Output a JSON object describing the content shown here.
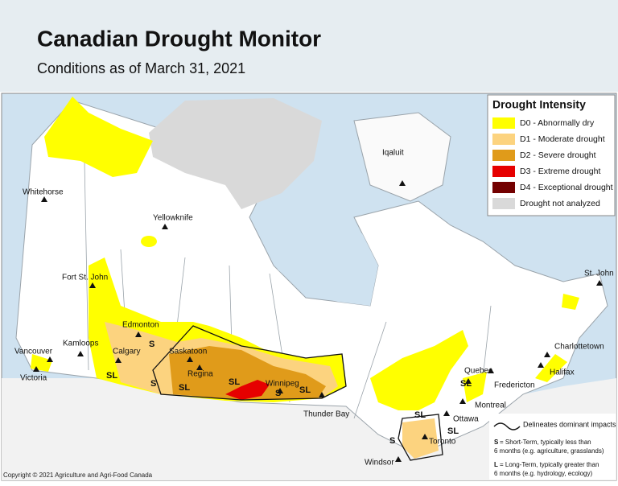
{
  "header": {
    "title": "Canadian Drought Monitor",
    "subtitle": "Conditions as of March 31, 2021"
  },
  "legend": {
    "title": "Drought Intensity",
    "items": [
      {
        "label": "D0 - Abnormally dry",
        "color": "#ffff00"
      },
      {
        "label": "D1 - Moderate drought",
        "color": "#fcd37f"
      },
      {
        "label": "D2 - Severe drought",
        "color": "#e09b1a"
      },
      {
        "label": "D3 - Extreme drought",
        "color": "#e60000"
      },
      {
        "label": "D4 - Exceptional drought",
        "color": "#730000"
      },
      {
        "label": "Drought not analyzed",
        "color": "#d9d9d9"
      }
    ]
  },
  "cities": [
    "Whitehorse",
    "Yellowknife",
    "Iqaluit",
    "St. John",
    "Fort St. John",
    "Edmonton",
    "Kamloops",
    "Calgary",
    "Saskatoon",
    "Vancouver",
    "Victoria",
    "Regina",
    "Winnipeg",
    "Thunder Bay",
    "Charlottetown",
    "Quebec",
    "Fredericton",
    "Halifax",
    "Montreal",
    "Ottawa",
    "Toronto",
    "Windsor"
  ],
  "impact_labels": [
    "S",
    "SL",
    "S",
    "SL",
    "SL",
    "S",
    "SL",
    "SL",
    "SL",
    "SL",
    "S"
  ],
  "impacts_legend": {
    "line_label": "Delineates dominant impacts",
    "short_term": {
      "key": "S",
      "line1": "= Short-Term, typically less than",
      "line2": "6 months (e.g. agriculture, grasslands)"
    },
    "long_term": {
      "key": "L",
      "line1": "= Long-Term, typically greater than",
      "line2": "6 months (e.g. hydrology, ecology)"
    }
  },
  "copyright": "Copyright © 2021 Agriculture and Agri-Food Canada"
}
